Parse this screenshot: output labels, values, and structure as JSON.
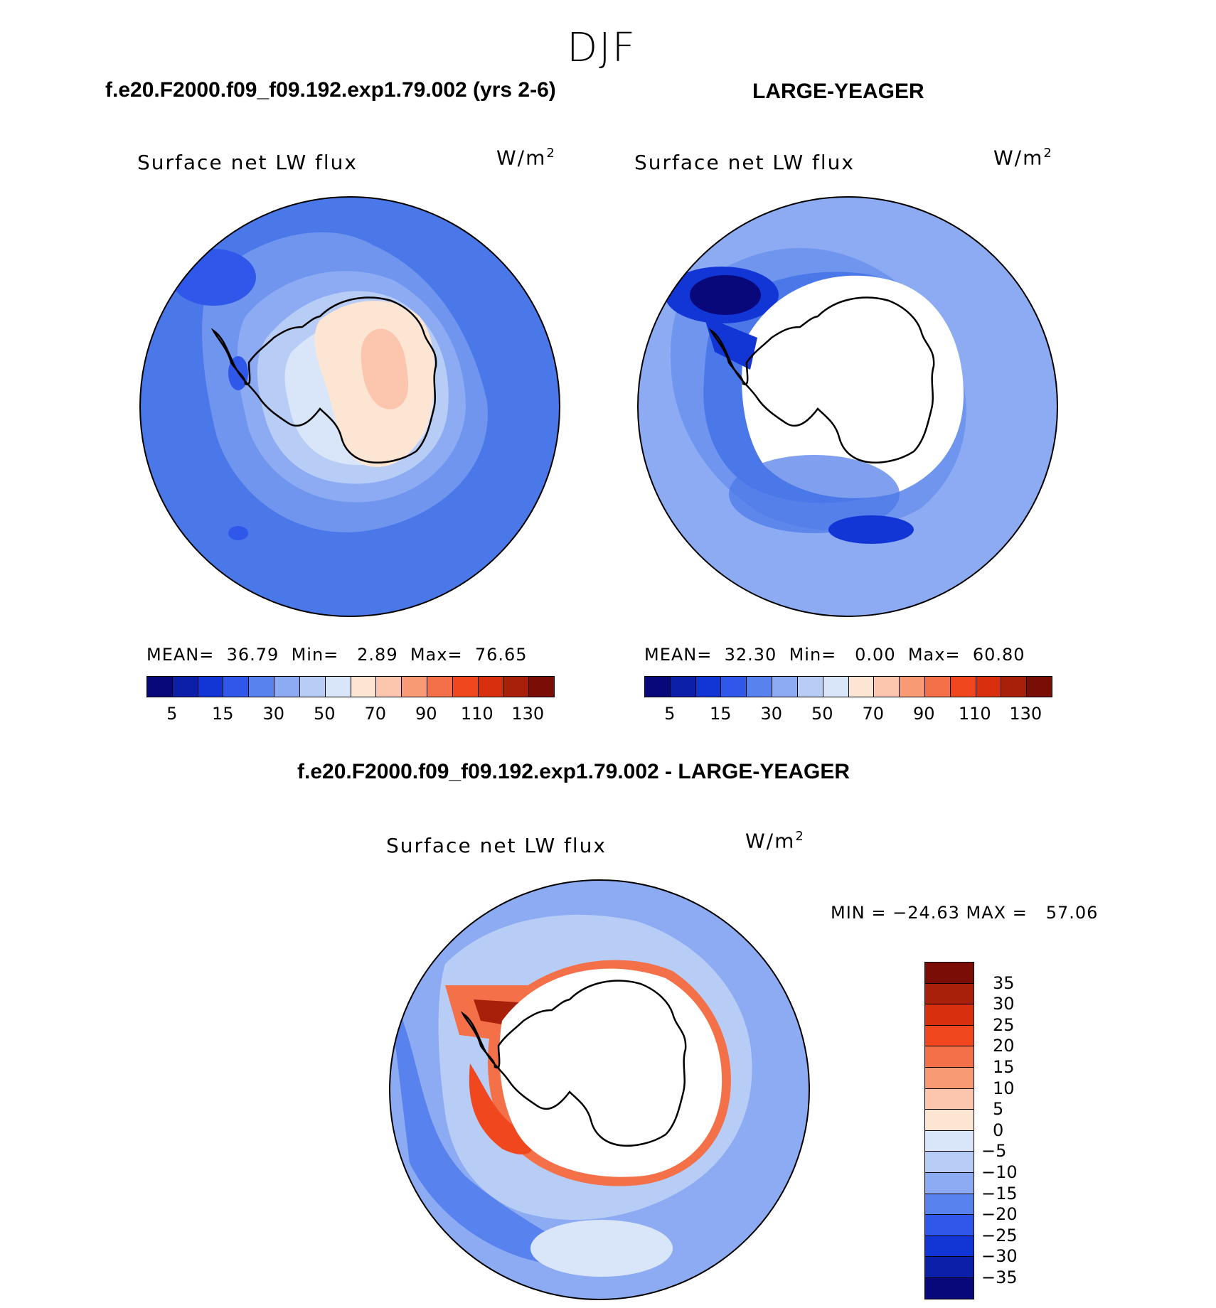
{
  "season": "DJF",
  "panels": [
    {
      "case_title": "f.e20.F2000.f09_f09.192.exp1.79.002 (yrs 2-6)",
      "variable": "Surface net LW flux",
      "units_base": "W/m",
      "units_exp": "2",
      "stats": "MEAN=  36.79  Min=   2.89  Max=  76.65"
    },
    {
      "case_title": "LARGE-YEAGER",
      "variable": "Surface net LW flux",
      "units_base": "W/m",
      "units_exp": "2",
      "stats": "MEAN=  32.30  Min=   0.00  Max=  60.80"
    },
    {
      "case_title": "f.e20.F2000.f09_f09.192.exp1.79.002 - LARGE-YEAGER",
      "variable": "Surface net LW flux",
      "units_base": "W/m",
      "units_exp": "2",
      "stats": "MIN = −24.63 MAX =   57.06"
    }
  ],
  "colorbar_main": {
    "ticks": [
      "5",
      "15",
      "30",
      "50",
      "70",
      "90",
      "110",
      "130"
    ],
    "colors": [
      "#08087a",
      "#0b1fa8",
      "#1236d6",
      "#2f58eb",
      "#5883ee",
      "#8cabf2",
      "#b8cdf6",
      "#d9e6fa",
      "#fde5d3",
      "#fbc6ad",
      "#f89a74",
      "#f47048",
      "#f0471f",
      "#d8300f",
      "#a8200a",
      "#7a0e06"
    ]
  },
  "colorbar_diff": {
    "ticks": [
      "35",
      "30",
      "25",
      "20",
      "15",
      "10",
      "5",
      "0",
      "−5",
      "−10",
      "−15",
      "−20",
      "−25",
      "−30",
      "−35"
    ],
    "colors": [
      "#7a0e06",
      "#a8200a",
      "#d8300f",
      "#f0471f",
      "#f47048",
      "#f89a74",
      "#fbc6ad",
      "#fde5d3",
      "#d9e6fa",
      "#b8cdf6",
      "#8cabf2",
      "#5883ee",
      "#2f58eb",
      "#1236d6",
      "#0b1fa8",
      "#08087a"
    ]
  },
  "map_colors": {
    "ocean_deep": "#4a78e8",
    "ocean_mid": "#6f95ee",
    "ocean_light": "#8cabf2",
    "pale_blue": "#b8cdf6",
    "very_pale": "#d9e6fa",
    "peach": "#fde5d3",
    "salmon": "#fbc6ad",
    "land_white": "#ffffff",
    "navy": "#08087a",
    "red_dark": "#a8200a",
    "red": "#e0401a",
    "orange": "#f47048"
  }
}
